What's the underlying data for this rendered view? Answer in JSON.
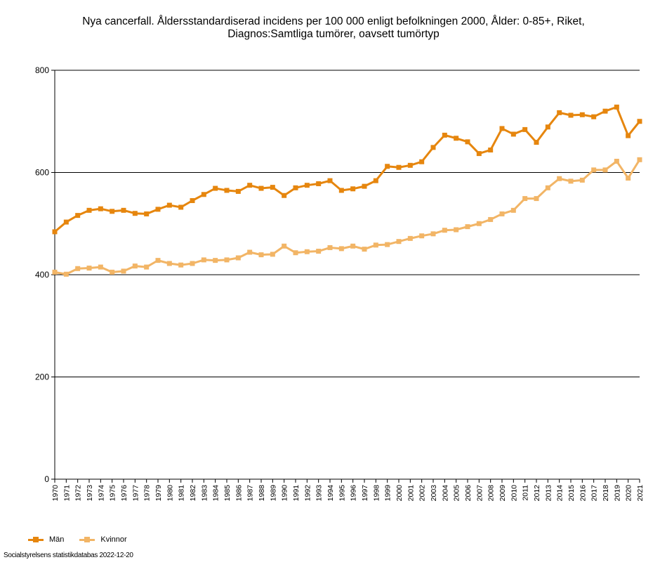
{
  "chart_data": {
    "type": "line",
    "title_line1": "Nya cancerfall. Åldersstandardiserad incidens per 100 000 enligt befolkningen 2000, Ålder: 0-85+, Riket,",
    "title_line2": "Diagnos:Samtliga tumörer, oavsett tumörtyp",
    "xlabel": "",
    "ylabel": "",
    "ylim": [
      0,
      800
    ],
    "yticks": [
      0,
      200,
      400,
      600,
      800
    ],
    "grid": true,
    "legend_position": "bottom-left",
    "x": [
      "1970",
      "1971",
      "1972",
      "1973",
      "1974",
      "1975",
      "1976",
      "1977",
      "1978",
      "1979",
      "1980",
      "1981",
      "1982",
      "1983",
      "1984",
      "1985",
      "1986",
      "1987",
      "1988",
      "1989",
      "1990",
      "1991",
      "1992",
      "1993",
      "1994",
      "1995",
      "1996",
      "1997",
      "1998",
      "1999",
      "2000",
      "2001",
      "2002",
      "2003",
      "2004",
      "2005",
      "2006",
      "2007",
      "2008",
      "2009",
      "2010",
      "2011",
      "2012",
      "2013",
      "2014",
      "2015",
      "2016",
      "2017",
      "2018",
      "2019",
      "2020",
      "2021"
    ],
    "series": [
      {
        "name": "Män",
        "color": "#e6860e",
        "values": [
          484,
          503,
          516,
          526,
          529,
          524,
          526,
          520,
          519,
          528,
          536,
          532,
          545,
          557,
          569,
          565,
          563,
          575,
          569,
          571,
          555,
          570,
          575,
          578,
          584,
          565,
          568,
          573,
          584,
          612,
          610,
          614,
          621,
          649,
          673,
          667,
          660,
          637,
          644,
          686,
          675,
          684,
          659,
          689,
          717,
          712,
          713,
          709,
          720,
          728,
          672,
          700
        ]
      },
      {
        "name": "Kvinnor",
        "color": "#f2b566",
        "values": [
          405,
          401,
          412,
          413,
          415,
          405,
          407,
          417,
          415,
          428,
          422,
          419,
          422,
          429,
          428,
          429,
          433,
          444,
          439,
          440,
          456,
          443,
          445,
          446,
          453,
          451,
          456,
          450,
          458,
          459,
          465,
          471,
          476,
          480,
          487,
          488,
          494,
          500,
          508,
          519,
          526,
          549,
          549,
          570,
          588,
          583,
          585,
          605,
          605,
          622,
          589,
          625
        ]
      }
    ]
  },
  "legend": {
    "man_label": "Män",
    "kvinnor_label": "Kvinnor"
  },
  "footer": {
    "source": "Socialstyrelsens statistikdatabas 2022-12-20"
  }
}
